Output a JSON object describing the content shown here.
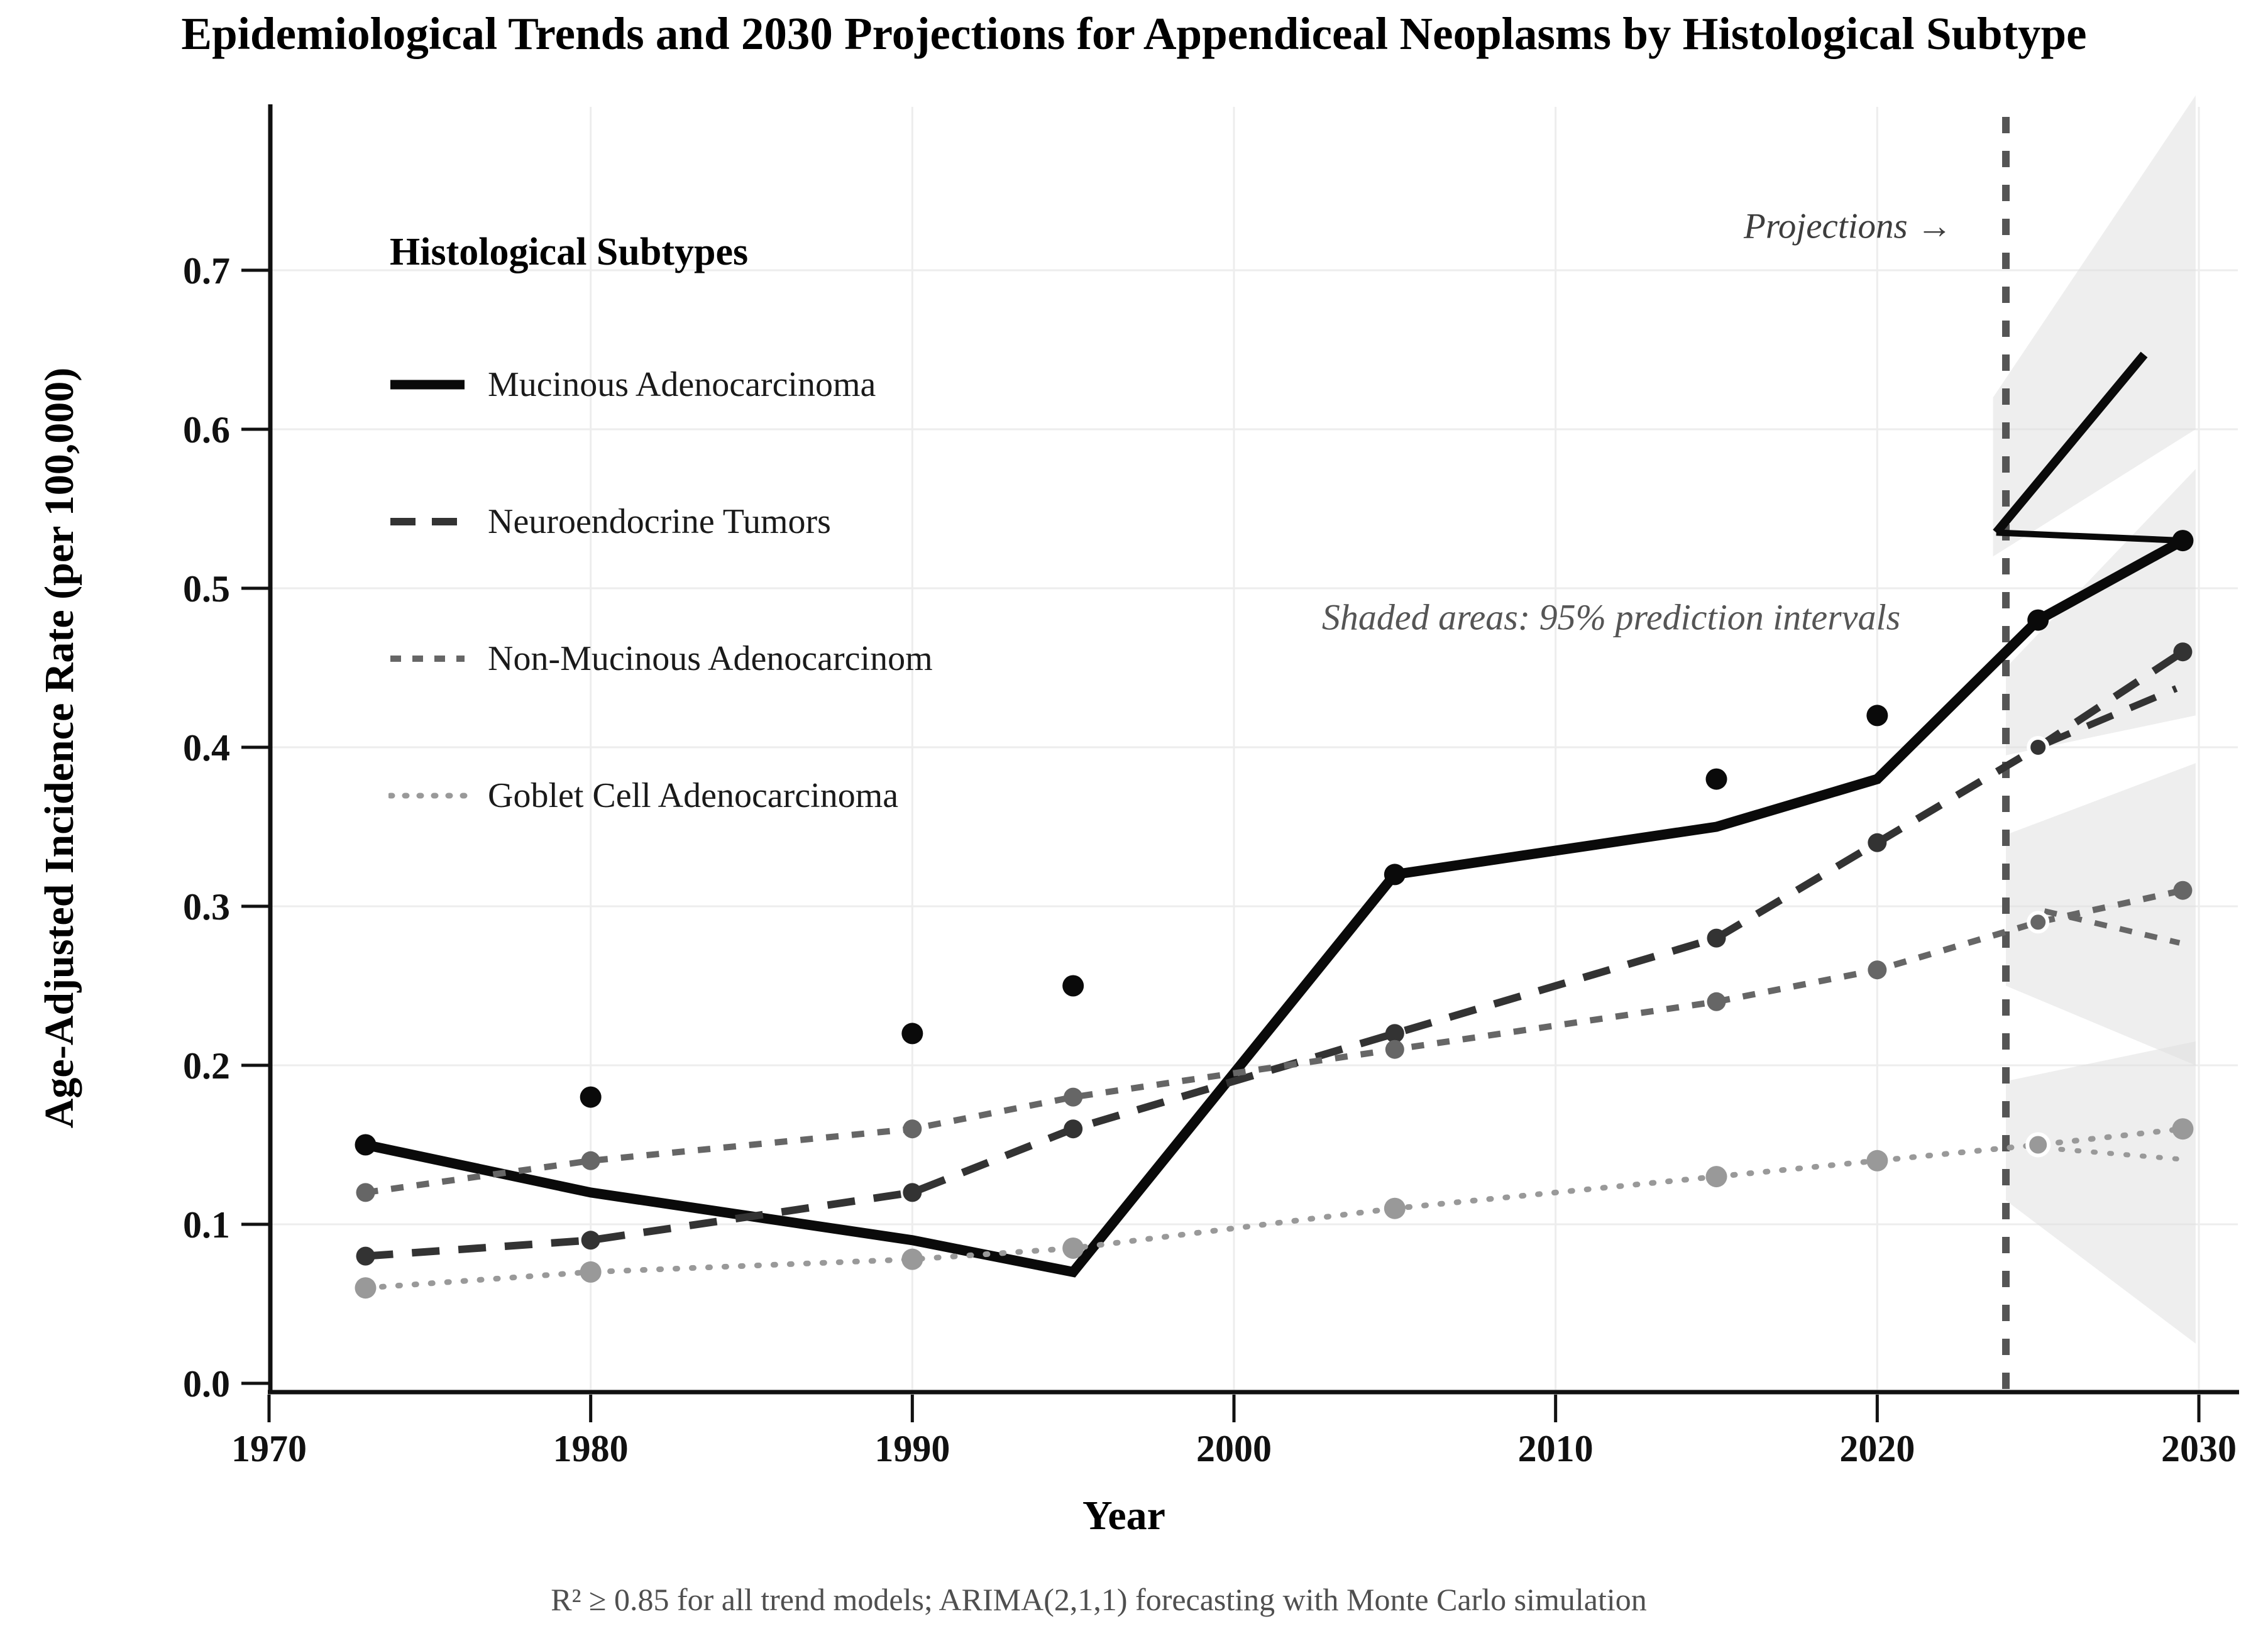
{
  "title": "Epidemiological Trends and 2030 Projections for Appendiceal Neoplasms by Histological Subtype",
  "footnote": "R² ≥ 0.85 for all trend models; ARIMA(2,1,1) forecasting with Monte Carlo simulation",
  "annotations": {
    "projections_label": "Projections →",
    "shaded_label": "Shaded areas: 95% prediction intervals"
  },
  "legend": {
    "title": "Histological Subtypes",
    "items": [
      {
        "label": "Mucinous Adenocarcinoma",
        "color": "#0a0a0a",
        "width": 15,
        "dash": "",
        "cap": "butt"
      },
      {
        "label": "Neuroendocrine Tumors",
        "color": "#333333",
        "width": 12,
        "dash": "40 26",
        "cap": "butt"
      },
      {
        "label": "Non-Mucinous Adenocarcinom",
        "color": "#666666",
        "width": 10,
        "dash": "17 18",
        "cap": "butt"
      },
      {
        "label": "Goblet Cell Adenocarcinoma",
        "color": "#999999",
        "width": 9,
        "dash": "3 20",
        "cap": "round"
      }
    ]
  },
  "chart_data": {
    "type": "line",
    "title": "Epidemiological Trends and 2030 Projections for Appendiceal Neoplasms by Histological Subtype",
    "xlabel": "Year",
    "ylabel": "Age-Adjusted Incidence Rate (per 100,000)",
    "xlim": [
      1970,
      2031.2
    ],
    "ylim": [
      0,
      0.803
    ],
    "grid": true,
    "legend_position": "upper left",
    "xticks": [
      1970,
      1980,
      1990,
      2000,
      2010,
      2020,
      2030
    ],
    "yticks": [
      0.0,
      0.1,
      0.2,
      0.3,
      0.4,
      0.5,
      0.6,
      0.7
    ],
    "projection": {
      "start_year": 2024,
      "divider_style": "dashed"
    },
    "series": [
      {
        "name": "Mucinous Adenocarcinoma",
        "color": "#0a0a0a",
        "line_width": 16,
        "dash": "",
        "cap": "butt",
        "marker_radius": 17,
        "trend": [
          [
            1973,
            0.15
          ],
          [
            1980,
            0.12
          ],
          [
            1990,
            0.09
          ],
          [
            1995,
            0.07
          ],
          [
            2005,
            0.32
          ],
          [
            2015,
            0.35
          ],
          [
            2020,
            0.38
          ],
          [
            2025,
            0.48
          ],
          [
            2029.5,
            0.53
          ]
        ],
        "points": [
          [
            1973,
            0.15
          ],
          [
            1980,
            0.18
          ],
          [
            1990,
            0.22
          ],
          [
            1995,
            0.25
          ],
          [
            2005,
            0.32
          ],
          [
            2015,
            0.38
          ],
          [
            2020,
            0.42
          ],
          [
            2025,
            0.48
          ],
          [
            2029.5,
            0.53
          ]
        ],
        "projection_branches": [
          {
            "width": 14,
            "dash": "",
            "cap": "butt",
            "points": [
              [
                2023.7,
                0.535
              ],
              [
                2028.3,
                0.647
              ]
            ]
          },
          {
            "width": 10,
            "dash": "",
            "cap": "butt",
            "points": [
              [
                2023.7,
                0.535
              ],
              [
                2029.5,
                0.53
              ]
            ]
          }
        ],
        "interval_band": [
          [
            2023.6,
            0.52
          ],
          [
            2023.6,
            0.62
          ],
          [
            2029.9,
            0.81
          ],
          [
            2029.9,
            0.6
          ]
        ]
      },
      {
        "name": "Neuroendocrine Tumors",
        "color": "#333333",
        "line_width": 12,
        "dash": "44 30",
        "cap": "butt",
        "marker_radius": 15,
        "trend": [
          [
            1973,
            0.08
          ],
          [
            1980,
            0.09
          ],
          [
            1990,
            0.12
          ],
          [
            1995,
            0.16
          ],
          [
            2005,
            0.22
          ],
          [
            2015,
            0.28
          ],
          [
            2020,
            0.34
          ],
          [
            2025,
            0.4
          ],
          [
            2029.5,
            0.46
          ]
        ],
        "points": [
          [
            1973,
            0.08
          ],
          [
            1980,
            0.09
          ],
          [
            1990,
            0.12
          ],
          [
            1995,
            0.16
          ],
          [
            2005,
            0.22
          ],
          [
            2015,
            0.28
          ],
          [
            2020,
            0.34
          ],
          [
            2025,
            0.4
          ],
          [
            2029.5,
            0.46
          ]
        ],
        "projection_branches": [
          {
            "width": 11,
            "dash": "44 30",
            "cap": "butt",
            "points": [
              [
                2025.2,
                0.402
              ],
              [
                2029.3,
                0.437
              ]
            ]
          }
        ],
        "interval_band": [
          [
            2024,
            0.395
          ],
          [
            2024,
            0.45
          ],
          [
            2029.9,
            0.575
          ],
          [
            2029.9,
            0.42
          ]
        ]
      },
      {
        "name": "Non-Mucinous Adenocarcinom",
        "color": "#666666",
        "line_width": 10,
        "dash": "20 21",
        "cap": "butt",
        "marker_radius": 15,
        "trend": [
          [
            1973,
            0.12
          ],
          [
            1980,
            0.14
          ],
          [
            1990,
            0.16
          ],
          [
            1995,
            0.18
          ],
          [
            2005,
            0.21
          ],
          [
            2015,
            0.24
          ],
          [
            2020,
            0.26
          ],
          [
            2025,
            0.29
          ],
          [
            2029.5,
            0.31
          ]
        ],
        "points": [
          [
            1973,
            0.12
          ],
          [
            1980,
            0.14
          ],
          [
            1990,
            0.16
          ],
          [
            1995,
            0.18
          ],
          [
            2005,
            0.21
          ],
          [
            2015,
            0.24
          ],
          [
            2020,
            0.26
          ],
          [
            2025,
            0.29
          ],
          [
            2029.5,
            0.31
          ]
        ],
        "projection_branches": [
          {
            "width": 9,
            "dash": "20 21",
            "cap": "butt",
            "points": [
              [
                2025.2,
                0.297
              ],
              [
                2029.4,
                0.277
              ]
            ]
          }
        ],
        "interval_band": [
          [
            2024,
            0.25
          ],
          [
            2024,
            0.345
          ],
          [
            2029.9,
            0.39
          ],
          [
            2029.9,
            0.2
          ]
        ]
      },
      {
        "name": "Goblet Cell Adenocarcinoma",
        "color": "#999999",
        "line_width": 9,
        "dash": "3 23",
        "cap": "round",
        "marker_radius": 17,
        "trend": [
          [
            1973,
            0.06
          ],
          [
            1980,
            0.07
          ],
          [
            1990,
            0.078
          ],
          [
            1995,
            0.085
          ],
          [
            2005,
            0.11
          ],
          [
            2015,
            0.13
          ],
          [
            2020,
            0.14
          ],
          [
            2025,
            0.15
          ],
          [
            2029.5,
            0.16
          ]
        ],
        "points": [
          [
            1973,
            0.06
          ],
          [
            1980,
            0.07
          ],
          [
            1990,
            0.078
          ],
          [
            1995,
            0.085
          ],
          [
            2005,
            0.11
          ],
          [
            2015,
            0.13
          ],
          [
            2020,
            0.14
          ],
          [
            2025,
            0.15
          ],
          [
            2029.5,
            0.16
          ]
        ],
        "projection_branches": [
          {
            "width": 8,
            "dash": "3 23",
            "cap": "round",
            "points": [
              [
                2025.2,
                0.148
              ],
              [
                2029.4,
                0.141
              ]
            ]
          }
        ],
        "interval_band": [
          [
            2024,
            0.115
          ],
          [
            2024,
            0.19
          ],
          [
            2029.9,
            0.215
          ],
          [
            2029.9,
            0.025
          ]
        ]
      }
    ]
  }
}
